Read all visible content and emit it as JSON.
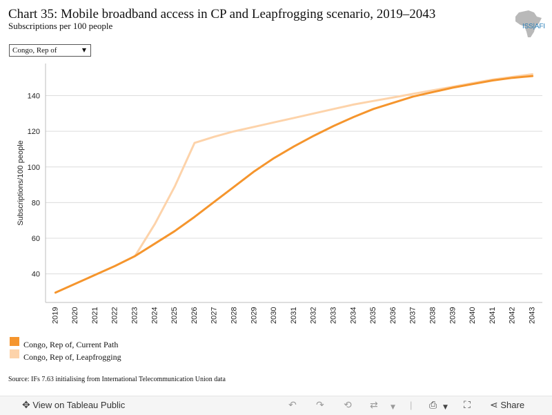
{
  "header": {
    "title": "Chart 35: Mobile broadband access in CP and Leapfrogging scenario, 2019–2043",
    "subtitle": "Subscriptions per 100 people"
  },
  "logo": {
    "text": "ISS|AFI",
    "icon": "africa-map-icon"
  },
  "filter": {
    "selected": "Congo, Rep of"
  },
  "chart_data": {
    "type": "line",
    "ylabel": "Subscriptions/100 people",
    "x": [
      "2019",
      "2020",
      "2021",
      "2022",
      "2023",
      "2024",
      "2025",
      "2026",
      "2027",
      "2028",
      "2029",
      "2030",
      "2031",
      "2032",
      "2033",
      "2034",
      "2035",
      "2036",
      "2037",
      "2038",
      "2039",
      "2040",
      "2041",
      "2042",
      "2043"
    ],
    "yticks": [
      "40",
      "60",
      "80",
      "100",
      "120",
      "140"
    ],
    "ylim": [
      24,
      158
    ],
    "grid": true,
    "legend_position": "bottom-left",
    "series": [
      {
        "name": "Congo, Rep of, Current Path",
        "color": "#f5952d",
        "values": [
          29.5,
          34.5,
          39.5,
          44.5,
          50.0,
          57.0,
          64.0,
          72.0,
          80.5,
          89.0,
          97.5,
          105.0,
          111.5,
          117.5,
          123.0,
          128.0,
          132.5,
          136.0,
          139.5,
          142.0,
          144.5,
          146.5,
          148.5,
          150.0,
          151.0
        ]
      },
      {
        "name": "Congo, Rep of, Leapfrogging",
        "color": "#fdd3aa",
        "values": [
          null,
          null,
          null,
          null,
          50.0,
          68.0,
          89.0,
          113.5,
          117.0,
          120.0,
          122.5,
          125.0,
          127.5,
          130.0,
          132.5,
          135.0,
          137.0,
          139.0,
          141.0,
          143.0,
          145.0,
          147.0,
          149.0,
          150.5,
          152.0
        ]
      }
    ]
  },
  "source": "Source: IFs 7.63 initialising from International Telecommunication Union data",
  "toolbar": {
    "view_label": "View on Tableau Public",
    "share_label": "Share"
  }
}
